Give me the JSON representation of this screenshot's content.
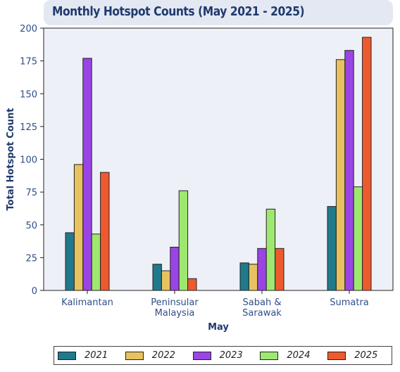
{
  "title": "Monthly Hotspot Counts (May 2021 - 2025)",
  "chart_data": {
    "type": "bar",
    "title": "Monthly Hotspot Counts (May 2021 - 2025)",
    "xlabel": "May",
    "ylabel": "Total Hotspot Count",
    "categories": [
      "Kalimantan",
      "Peninsular\nMalaysia",
      "Sabah &\nSarawak",
      "Sumatra"
    ],
    "ylim": [
      0,
      200
    ],
    "yticks": [
      0,
      25,
      50,
      75,
      100,
      125,
      150,
      175,
      200
    ],
    "legend_position": "bottom",
    "grid": false,
    "series": [
      {
        "name": "2021",
        "color": "#1f7a8c",
        "values": [
          44,
          20,
          21,
          64
        ]
      },
      {
        "name": "2022",
        "color": "#e8c260",
        "values": [
          96,
          15,
          20,
          176
        ]
      },
      {
        "name": "2023",
        "color": "#9b44e6",
        "values": [
          177,
          33,
          32,
          183
        ]
      },
      {
        "name": "2024",
        "color": "#9fe870",
        "values": [
          43,
          76,
          62,
          79
        ]
      },
      {
        "name": "2025",
        "color": "#ee5a2e",
        "values": [
          90,
          9,
          32,
          193
        ]
      }
    ]
  }
}
